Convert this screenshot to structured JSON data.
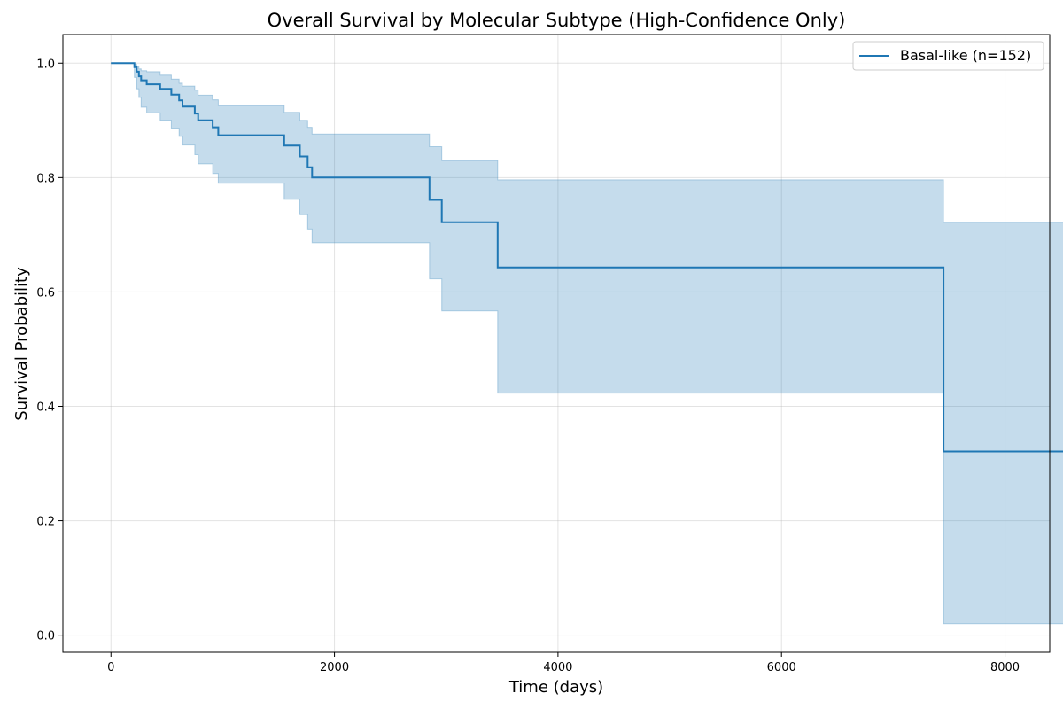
{
  "chart_data": {
    "type": "line",
    "title": "Overall Survival by Molecular Subtype (High-Confidence Only)",
    "xlabel": "Time (days)",
    "ylabel": "Survival Probability",
    "xlim": [
      -430,
      8400
    ],
    "ylim": [
      -0.03,
      1.05
    ],
    "xticks": [
      0,
      2000,
      4000,
      6000,
      8000
    ],
    "xtick_labels": [
      "0",
      "2000",
      "4000",
      "6000",
      "8000"
    ],
    "yticks": [
      0.0,
      0.2,
      0.4,
      0.6,
      0.8,
      1.0
    ],
    "ytick_labels": [
      "0.0",
      "0.2",
      "0.4",
      "0.6",
      "0.8",
      "1.0"
    ],
    "grid": true,
    "legend_position": "top-right",
    "series_color": "#1f77b4",
    "band_color": "#1f77b4",
    "series": [
      {
        "name": "Basal-like (n=152)",
        "step": "post",
        "points": [
          [
            0,
            1.0
          ],
          [
            210,
            0.993
          ],
          [
            230,
            0.985
          ],
          [
            250,
            0.977
          ],
          [
            270,
            0.97
          ],
          [
            320,
            0.963
          ],
          [
            440,
            0.955
          ],
          [
            540,
            0.945
          ],
          [
            610,
            0.935
          ],
          [
            640,
            0.924
          ],
          [
            750,
            0.912
          ],
          [
            780,
            0.9
          ],
          [
            910,
            0.888
          ],
          [
            960,
            0.874
          ],
          [
            1550,
            0.856
          ],
          [
            1690,
            0.837
          ],
          [
            1760,
            0.818
          ],
          [
            1800,
            0.8
          ],
          [
            2850,
            0.761
          ],
          [
            2960,
            0.722
          ],
          [
            3460,
            0.643
          ],
          [
            7450,
            0.321
          ],
          [
            8600,
            0.321
          ]
        ],
        "ci_lower": [
          1.0,
          0.975,
          0.955,
          0.94,
          0.923,
          0.913,
          0.9,
          0.886,
          0.872,
          0.857,
          0.84,
          0.824,
          0.807,
          0.79,
          0.762,
          0.735,
          0.71,
          0.686,
          0.623,
          0.567,
          0.423,
          0.02,
          0.02
        ],
        "ci_upper": [
          1.0,
          0.998,
          0.995,
          0.99,
          0.987,
          0.985,
          0.979,
          0.972,
          0.965,
          0.96,
          0.953,
          0.944,
          0.936,
          0.926,
          0.914,
          0.9,
          0.888,
          0.876,
          0.854,
          0.83,
          0.796,
          0.722,
          0.722
        ]
      }
    ]
  }
}
